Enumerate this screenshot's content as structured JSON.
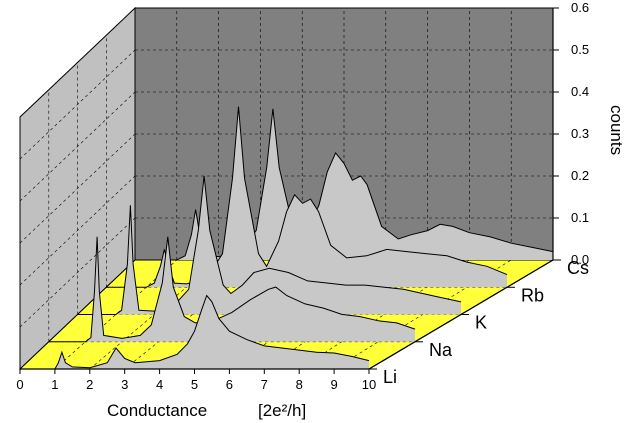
{
  "chart_data": {
    "type": "area",
    "style": "3d-waterfall",
    "xlabel": "Conductance",
    "xlabel_unit": "[2e²/h]",
    "zlabel": "counts",
    "xlim": [
      0,
      10
    ],
    "ylim": [
      0.0,
      0.6
    ],
    "x_ticks": [
      "0",
      "1",
      "2",
      "3",
      "4",
      "5",
      "6",
      "7",
      "8",
      "9",
      "10"
    ],
    "y_ticks": [
      "0.0",
      "0.1",
      "0.2",
      "0.3",
      "0.4",
      "0.5",
      "0.6"
    ],
    "grid": true,
    "colors": {
      "back_wall": "#808080",
      "side_wall": "#c0c0c0",
      "floor": "#ffff3a",
      "fill": "#c8c8c8",
      "line": "#000000"
    },
    "series": [
      {
        "name": "Li",
        "points": [
          [
            0,
            0
          ],
          [
            1,
            0
          ],
          [
            1.1,
            0.015
          ],
          [
            1.2,
            0.04
          ],
          [
            1.3,
            0.015
          ],
          [
            1.5,
            0.005
          ],
          [
            2,
            0.003
          ],
          [
            2.5,
            0.015
          ],
          [
            2.75,
            0.05
          ],
          [
            3.0,
            0.025
          ],
          [
            3.3,
            0.015
          ],
          [
            4,
            0.02
          ],
          [
            4.5,
            0.035
          ],
          [
            4.8,
            0.06
          ],
          [
            5.0,
            0.09
          ],
          [
            5.2,
            0.14
          ],
          [
            5.35,
            0.175
          ],
          [
            5.5,
            0.16
          ],
          [
            5.7,
            0.12
          ],
          [
            6.0,
            0.09
          ],
          [
            6.5,
            0.07
          ],
          [
            7.0,
            0.055
          ],
          [
            7.5,
            0.05
          ],
          [
            8.0,
            0.045
          ],
          [
            8.5,
            0.04
          ],
          [
            9.0,
            0.038
          ],
          [
            9.5,
            0.03
          ],
          [
            10,
            0.02
          ]
        ]
      },
      {
        "name": "Na",
        "points": [
          [
            0,
            0
          ],
          [
            1,
            0
          ],
          [
            1.15,
            0.01
          ],
          [
            1.25,
            0.12
          ],
          [
            1.32,
            0.25
          ],
          [
            1.38,
            0.12
          ],
          [
            1.5,
            0.015
          ],
          [
            2.0,
            0.008
          ],
          [
            2.5,
            0.015
          ],
          [
            2.8,
            0.04
          ],
          [
            3.1,
            0.14
          ],
          [
            3.25,
            0.25
          ],
          [
            3.4,
            0.13
          ],
          [
            3.7,
            0.06
          ],
          [
            4.0,
            0.045
          ],
          [
            4.5,
            0.05
          ],
          [
            5.0,
            0.07
          ],
          [
            5.5,
            0.1
          ],
          [
            6.0,
            0.125
          ],
          [
            6.2,
            0.13
          ],
          [
            6.5,
            0.11
          ],
          [
            7.0,
            0.09
          ],
          [
            7.5,
            0.08
          ],
          [
            8.0,
            0.065
          ],
          [
            8.5,
            0.06
          ],
          [
            9.0,
            0.05
          ],
          [
            9.5,
            0.045
          ],
          [
            10,
            0.03
          ]
        ]
      },
      {
        "name": "K",
        "points": [
          [
            0,
            0
          ],
          [
            1,
            0
          ],
          [
            1.15,
            0.01
          ],
          [
            1.3,
            0.12
          ],
          [
            1.38,
            0.26
          ],
          [
            1.45,
            0.12
          ],
          [
            1.6,
            0.01
          ],
          [
            2.0,
            0.008
          ],
          [
            2.5,
            0.02
          ],
          [
            2.9,
            0.06
          ],
          [
            3.15,
            0.2
          ],
          [
            3.3,
            0.33
          ],
          [
            3.45,
            0.2
          ],
          [
            3.8,
            0.07
          ],
          [
            4.0,
            0.05
          ],
          [
            4.3,
            0.07
          ],
          [
            4.6,
            0.1
          ],
          [
            5.0,
            0.11
          ],
          [
            5.5,
            0.1
          ],
          [
            6.0,
            0.08
          ],
          [
            6.5,
            0.075
          ],
          [
            7.0,
            0.07
          ],
          [
            7.5,
            0.07
          ],
          [
            8.0,
            0.065
          ],
          [
            8.5,
            0.06
          ],
          [
            9.0,
            0.05
          ],
          [
            9.5,
            0.04
          ],
          [
            10,
            0.03
          ]
        ]
      },
      {
        "name": "Rb",
        "points": [
          [
            0,
            0
          ],
          [
            1,
            0
          ],
          [
            1.2,
            0.01
          ],
          [
            1.35,
            0.05
          ],
          [
            1.45,
            0.09
          ],
          [
            1.55,
            0.05
          ],
          [
            1.7,
            0.01
          ],
          [
            2.0,
            0.008
          ],
          [
            2.5,
            0.02
          ],
          [
            2.9,
            0.08
          ],
          [
            3.15,
            0.26
          ],
          [
            3.3,
            0.43
          ],
          [
            3.45,
            0.26
          ],
          [
            3.8,
            0.08
          ],
          [
            4.0,
            0.05
          ],
          [
            4.3,
            0.11
          ],
          [
            4.5,
            0.18
          ],
          [
            4.7,
            0.22
          ],
          [
            4.9,
            0.2
          ],
          [
            5.1,
            0.21
          ],
          [
            5.3,
            0.18
          ],
          [
            5.6,
            0.1
          ],
          [
            6.0,
            0.07
          ],
          [
            6.5,
            0.075
          ],
          [
            7.0,
            0.09
          ],
          [
            7.5,
            0.085
          ],
          [
            8.0,
            0.08
          ],
          [
            8.5,
            0.075
          ],
          [
            9.0,
            0.06
          ],
          [
            9.5,
            0.05
          ],
          [
            10,
            0.03
          ]
        ]
      },
      {
        "name": "Cs",
        "points": [
          [
            0,
            0
          ],
          [
            1,
            0
          ],
          [
            1.2,
            0.01
          ],
          [
            1.35,
            0.06
          ],
          [
            1.45,
            0.12
          ],
          [
            1.55,
            0.06
          ],
          [
            1.7,
            0.01
          ],
          [
            2.0,
            0.008
          ],
          [
            2.5,
            0.02
          ],
          [
            2.9,
            0.07
          ],
          [
            3.15,
            0.22
          ],
          [
            3.3,
            0.36
          ],
          [
            3.45,
            0.22
          ],
          [
            3.8,
            0.07
          ],
          [
            4.0,
            0.05
          ],
          [
            4.4,
            0.13
          ],
          [
            4.6,
            0.21
          ],
          [
            4.8,
            0.255
          ],
          [
            5.0,
            0.23
          ],
          [
            5.2,
            0.19
          ],
          [
            5.4,
            0.2
          ],
          [
            5.55,
            0.18
          ],
          [
            5.9,
            0.08
          ],
          [
            6.3,
            0.05
          ],
          [
            6.6,
            0.06
          ],
          [
            7.0,
            0.07
          ],
          [
            7.3,
            0.085
          ],
          [
            7.6,
            0.08
          ],
          [
            8.0,
            0.065
          ],
          [
            8.5,
            0.055
          ],
          [
            9.0,
            0.04
          ],
          [
            9.5,
            0.03
          ],
          [
            10,
            0.02
          ]
        ]
      }
    ]
  }
}
